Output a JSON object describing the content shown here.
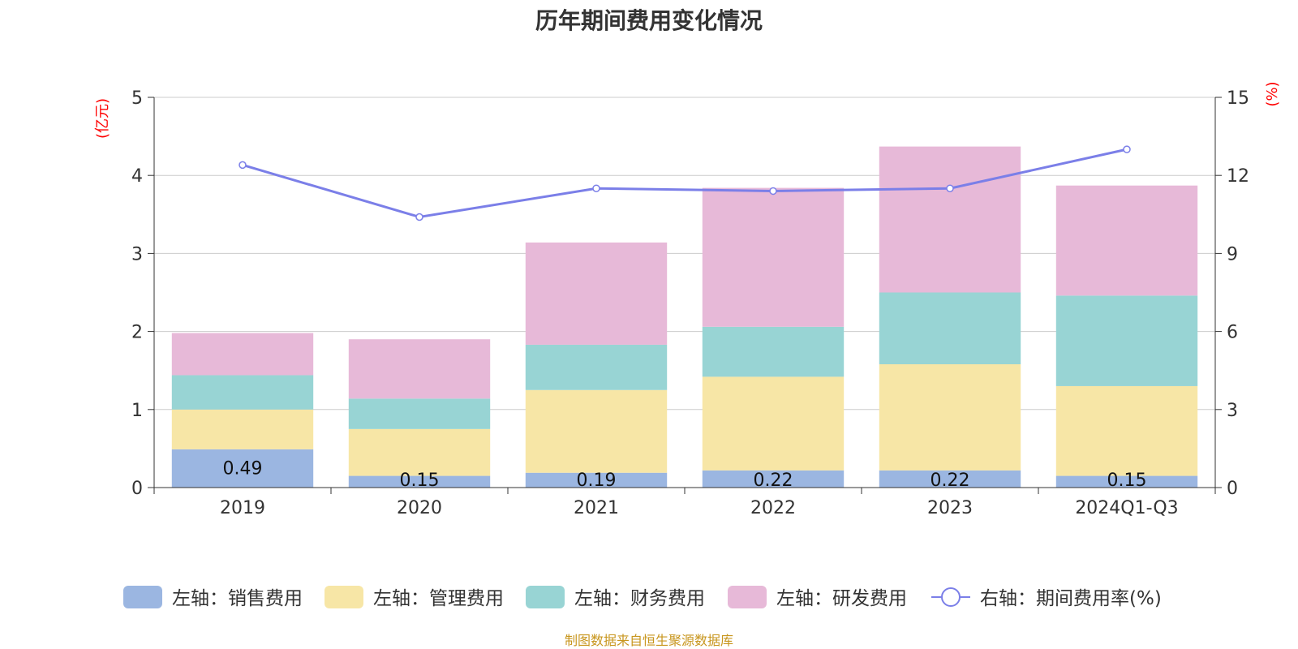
{
  "chart_data": {
    "type": "bar",
    "title": "历年期间费用变化情况",
    "categories": [
      "2019",
      "2020",
      "2021",
      "2022",
      "2023",
      "2024Q1-Q3"
    ],
    "y_left_unit": "(亿元)",
    "y_right_unit": "(%)",
    "y_left_ticks": [
      "0",
      "1",
      "2",
      "3",
      "4",
      "5"
    ],
    "y_right_ticks": [
      "0",
      "3",
      "6",
      "9",
      "12",
      "15"
    ],
    "ylim_left": [
      0,
      5
    ],
    "ylim_right": [
      0,
      15
    ],
    "grid": true,
    "legend_position": "bottom",
    "series": [
      {
        "name": "左轴：销售费用",
        "type": "bar",
        "axis": "left",
        "color": "#9bb6e1",
        "values": [
          0.49,
          0.15,
          0.19,
          0.22,
          0.22,
          0.15
        ],
        "labels": [
          "0.49",
          "0.15",
          "0.19",
          "0.22",
          "0.22",
          "0.15"
        ]
      },
      {
        "name": "左轴：管理费用",
        "type": "bar",
        "axis": "left",
        "color": "#f7e6a6",
        "values": [
          0.51,
          0.6,
          1.06,
          1.2,
          1.36,
          1.15
        ]
      },
      {
        "name": "左轴：财务费用",
        "type": "bar",
        "axis": "left",
        "color": "#98d4d4",
        "values": [
          0.44,
          0.39,
          0.58,
          0.64,
          0.92,
          1.16
        ]
      },
      {
        "name": "左轴：研发费用",
        "type": "bar",
        "axis": "left",
        "color": "#e7b9d8",
        "values": [
          0.54,
          0.76,
          1.31,
          1.78,
          1.87,
          1.41
        ]
      },
      {
        "name": "右轴：期间费用率(%)",
        "type": "line",
        "axis": "right",
        "color": "#7b7fe8",
        "values": [
          12.4,
          10.4,
          11.5,
          11.4,
          11.5,
          13.0
        ]
      }
    ]
  },
  "colors": {
    "title": "#333333",
    "axis_unit": "#ff0000",
    "tick_text": "#333333",
    "grid": "#cccccc",
    "source": "#c8961e"
  },
  "footer": {
    "source": "制图数据来自恒生聚源数据库"
  }
}
